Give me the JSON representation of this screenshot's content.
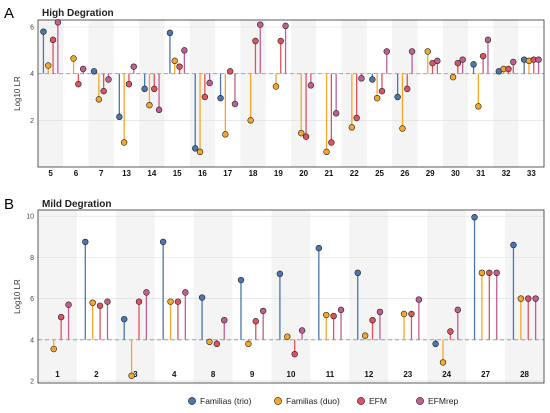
{
  "legend": {
    "items": [
      {
        "label": "Familias (trio)",
        "color": "#4a76b1"
      },
      {
        "label": "Familias (duo)",
        "color": "#f4a72a"
      },
      {
        "label": "EFM",
        "color": "#e0525e"
      },
      {
        "label": "EFMrep",
        "color": "#c15f93"
      }
    ]
  },
  "chart_data": [
    {
      "panel_letter": "A",
      "type": "lollipop",
      "title": "High Degration",
      "xlabel": "",
      "ylabel": "Log10 LR",
      "baseline": 4,
      "ylim": [
        0,
        6.3
      ],
      "yticks": [
        2,
        4,
        6
      ],
      "grid": true,
      "categories": [
        "5",
        "6",
        "7",
        "13",
        "14",
        "15",
        "16",
        "17",
        "18",
        "19",
        "20",
        "21",
        "22",
        "25",
        "26",
        "29",
        "30",
        "31",
        "32",
        "33"
      ],
      "series": [
        {
          "name": "Familias (trio)",
          "values": [
            5.8,
            null,
            4.1,
            2.15,
            3.35,
            5.75,
            0.8,
            2.95,
            null,
            null,
            null,
            null,
            null,
            3.75,
            3.0,
            null,
            null,
            4.4,
            4.1,
            4.6
          ]
        },
        {
          "name": "Familias (duo)",
          "values": [
            4.35,
            4.65,
            2.9,
            1.05,
            2.65,
            4.55,
            0.65,
            1.4,
            2.0,
            3.45,
            1.45,
            0.65,
            1.7,
            2.95,
            1.65,
            4.95,
            3.85,
            2.6,
            4.2,
            4.55
          ]
        },
        {
          "name": "EFM",
          "values": [
            5.45,
            3.55,
            3.25,
            3.55,
            3.35,
            4.3,
            3.0,
            4.1,
            5.4,
            5.4,
            1.3,
            1.05,
            2.1,
            3.25,
            3.35,
            4.45,
            4.45,
            4.75,
            4.2,
            4.6
          ]
        },
        {
          "name": "EFMrep",
          "values": [
            6.2,
            4.2,
            3.75,
            4.3,
            2.45,
            5.0,
            3.6,
            2.7,
            6.1,
            6.05,
            3.5,
            2.3,
            3.8,
            4.95,
            4.95,
            4.55,
            4.6,
            5.45,
            4.5,
            4.6
          ]
        }
      ]
    },
    {
      "panel_letter": "B",
      "type": "lollipop",
      "title": "Mild Degration",
      "xlabel": "",
      "ylabel": "Log10 LR",
      "baseline": 4,
      "ylim": [
        1.9,
        10.3
      ],
      "yticks": [
        2,
        4,
        6,
        8,
        10
      ],
      "grid": true,
      "categories": [
        "1",
        "2",
        "3",
        "4",
        "8",
        "9",
        "10",
        "11",
        "12",
        "23",
        "24",
        "27",
        "28"
      ],
      "series": [
        {
          "name": "Familias (trio)",
          "values": [
            null,
            8.75,
            5.0,
            8.75,
            6.05,
            6.9,
            7.2,
            8.45,
            7.25,
            null,
            3.8,
            9.95,
            8.6
          ]
        },
        {
          "name": "Familias (duo)",
          "values": [
            3.55,
            5.8,
            2.25,
            5.85,
            3.9,
            3.8,
            4.15,
            5.2,
            4.2,
            5.25,
            2.9,
            7.25,
            6.0
          ]
        },
        {
          "name": "EFM",
          "values": [
            5.1,
            5.65,
            5.85,
            5.85,
            3.8,
            4.9,
            3.3,
            5.15,
            4.95,
            5.25,
            4.4,
            7.25,
            6.0
          ]
        },
        {
          "name": "EFMrep",
          "values": [
            5.7,
            5.85,
            6.3,
            6.3,
            4.95,
            5.4,
            4.45,
            5.45,
            5.35,
            5.95,
            5.45,
            7.25,
            6.0
          ]
        }
      ]
    }
  ]
}
